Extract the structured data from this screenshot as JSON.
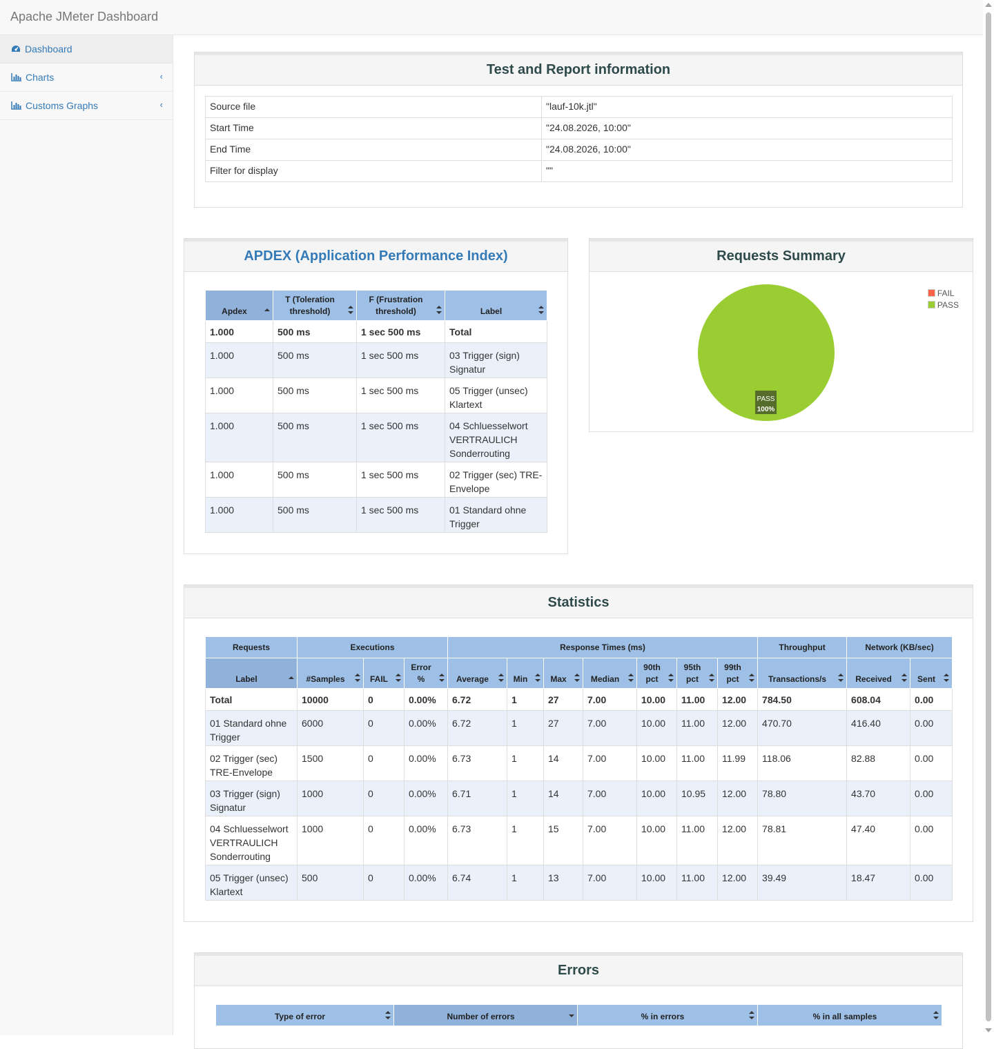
{
  "app": {
    "title": "Apache JMeter Dashboard"
  },
  "sidebar": {
    "items": [
      {
        "label": "Dashboard",
        "icon": "dashboard-icon",
        "active": true
      },
      {
        "label": "Charts",
        "icon": "bar-chart-icon"
      },
      {
        "label": "Customs Graphs",
        "icon": "bar-chart-icon"
      }
    ]
  },
  "report_info": {
    "title": "Test and Report information",
    "rows": [
      {
        "key": "Source file",
        "value": "\"lauf-10k.jtl\""
      },
      {
        "key": "Start Time",
        "value": "\"24.08.2026, 10:00\""
      },
      {
        "key": "End Time",
        "value": "\"24.08.2026, 10:00\""
      },
      {
        "key": "Filter for display",
        "value": "\"\""
      }
    ]
  },
  "apdex": {
    "title": "APDEX (Application Performance Index)",
    "headers": [
      "Apdex",
      "T (Toleration threshold)",
      "F (Frustration threshold)",
      "Label"
    ],
    "total": [
      "1.000",
      "500 ms",
      "1 sec 500 ms",
      "Total"
    ],
    "rows": [
      [
        "1.000",
        "500 ms",
        "1 sec 500 ms",
        "03 Trigger (sign) Signatur"
      ],
      [
        "1.000",
        "500 ms",
        "1 sec 500 ms",
        "05 Trigger (unsec) Klartext"
      ],
      [
        "1.000",
        "500 ms",
        "1 sec 500 ms",
        "04 Schluesselwort VERTRAULICH Sonderrouting"
      ],
      [
        "1.000",
        "500 ms",
        "1 sec 500 ms",
        "02 Trigger (sec) TRE-Envelope"
      ],
      [
        "1.000",
        "500 ms",
        "1 sec 500 ms",
        "01 Standard ohne Trigger"
      ]
    ]
  },
  "requests_summary": {
    "title": "Requests Summary",
    "legend": [
      {
        "label": "FAIL",
        "color": "#ff6347"
      },
      {
        "label": "PASS",
        "color": "#9acd32"
      }
    ],
    "pie_label": "PASS",
    "pie_percent": "100%"
  },
  "chart_data": {
    "type": "pie",
    "title": "Requests Summary",
    "categories": [
      "FAIL",
      "PASS"
    ],
    "values": [
      0,
      100
    ],
    "colors": [
      "#ff6347",
      "#9acd32"
    ],
    "legend_position": "top-right"
  },
  "statistics": {
    "title": "Statistics",
    "groups": [
      "Requests",
      "Executions",
      "Response Times (ms)",
      "Throughput",
      "Network (KB/sec)"
    ],
    "headers": [
      "Label",
      "#Samples",
      "FAIL",
      "Error %",
      "Average",
      "Min",
      "Max",
      "Median",
      "90th pct",
      "95th pct",
      "99th pct",
      "Transactions/s",
      "Received",
      "Sent"
    ],
    "total": [
      "Total",
      "10000",
      "0",
      "0.00%",
      "6.72",
      "1",
      "27",
      "7.00",
      "10.00",
      "11.00",
      "12.00",
      "784.50",
      "608.04",
      "0.00"
    ],
    "rows": [
      [
        "01 Standard ohne Trigger",
        "6000",
        "0",
        "0.00%",
        "6.72",
        "1",
        "27",
        "7.00",
        "10.00",
        "11.00",
        "12.00",
        "470.70",
        "416.40",
        "0.00"
      ],
      [
        "02 Trigger (sec) TRE-Envelope",
        "1500",
        "0",
        "0.00%",
        "6.73",
        "1",
        "14",
        "7.00",
        "10.00",
        "11.00",
        "11.99",
        "118.06",
        "82.88",
        "0.00"
      ],
      [
        "03 Trigger (sign) Signatur",
        "1000",
        "0",
        "0.00%",
        "6.71",
        "1",
        "14",
        "7.00",
        "10.00",
        "10.95",
        "12.00",
        "78.80",
        "43.70",
        "0.00"
      ],
      [
        "04 Schluesselwort VERTRAULICH Sonderrouting",
        "1000",
        "0",
        "0.00%",
        "6.73",
        "1",
        "15",
        "7.00",
        "10.00",
        "11.00",
        "12.00",
        "78.81",
        "47.40",
        "0.00"
      ],
      [
        "05 Trigger (unsec) Klartext",
        "500",
        "0",
        "0.00%",
        "6.74",
        "1",
        "13",
        "7.00",
        "10.00",
        "11.00",
        "12.00",
        "39.49",
        "18.47",
        "0.00"
      ]
    ]
  },
  "errors": {
    "title": "Errors",
    "headers": [
      "Type of error",
      "Number of errors",
      "% in errors",
      "% in all samples"
    ]
  }
}
